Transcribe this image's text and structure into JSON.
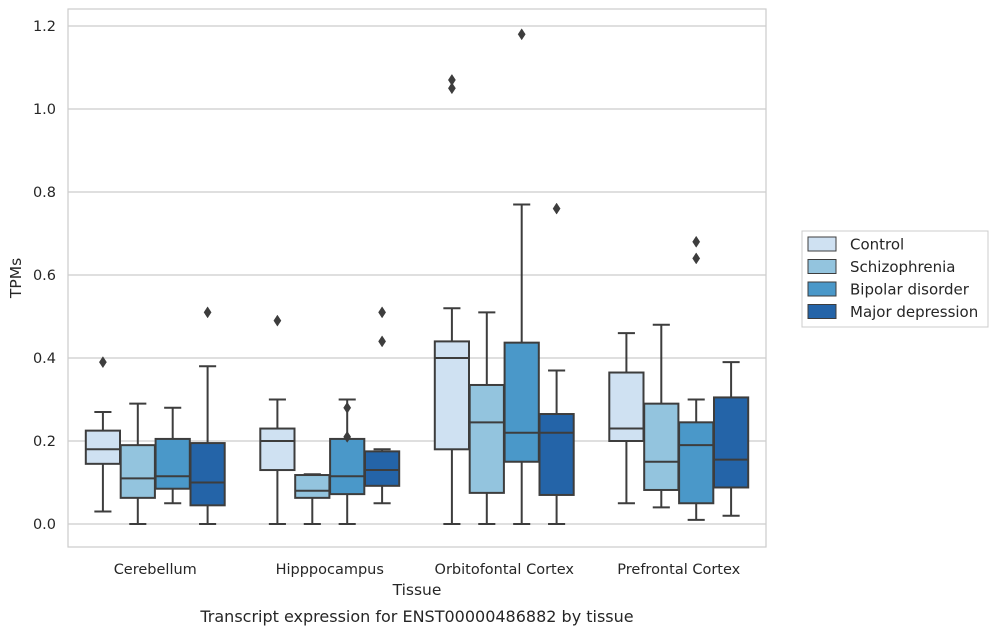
{
  "caption": "Transcript expression for ENST00000486882 by tissue",
  "chart_data": {
    "type": "box",
    "xlabel": "Tissue",
    "ylabel": "TPMs",
    "ylim": [
      -0.055,
      1.24
    ],
    "yticks": [
      "0.0",
      "0.2",
      "0.4",
      "0.6",
      "0.8",
      "1.0",
      "1.2"
    ],
    "grid": "horizontal",
    "legend_position": "right",
    "categories": [
      "Cerebellum",
      "Hipppocampus",
      "Orbitofontal Cortex",
      "Prefrontal Cortex"
    ],
    "series": [
      {
        "name": "Control",
        "color": "#cfe1f2",
        "boxes": [
          {
            "whislo": 0.03,
            "q1": 0.145,
            "med": 0.18,
            "q3": 0.225,
            "whishi": 0.27,
            "fliers": [
              0.39
            ]
          },
          {
            "whislo": 0.0,
            "q1": 0.13,
            "med": 0.2,
            "q3": 0.23,
            "whishi": 0.3,
            "fliers": [
              0.49
            ]
          },
          {
            "whislo": 0.0,
            "q1": 0.18,
            "med": 0.4,
            "q3": 0.44,
            "whishi": 0.52,
            "fliers": [
              1.05,
              1.07
            ]
          },
          {
            "whislo": 0.05,
            "q1": 0.2,
            "med": 0.23,
            "q3": 0.365,
            "whishi": 0.46,
            "fliers": []
          }
        ]
      },
      {
        "name": "Schizophrenia",
        "color": "#93c4de",
        "boxes": [
          {
            "whislo": 0.0,
            "q1": 0.063,
            "med": 0.11,
            "q3": 0.19,
            "whishi": 0.29,
            "fliers": []
          },
          {
            "whislo": 0.0,
            "q1": 0.063,
            "med": 0.08,
            "q3": 0.118,
            "whishi": 0.12,
            "fliers": []
          },
          {
            "whislo": 0.0,
            "q1": 0.075,
            "med": 0.245,
            "q3": 0.335,
            "whishi": 0.51,
            "fliers": []
          },
          {
            "whislo": 0.04,
            "q1": 0.082,
            "med": 0.15,
            "q3": 0.29,
            "whishi": 0.48,
            "fliers": []
          }
        ]
      },
      {
        "name": "Bipolar disorder",
        "color": "#4a98c9",
        "boxes": [
          {
            "whislo": 0.05,
            "q1": 0.085,
            "med": 0.115,
            "q3": 0.205,
            "whishi": 0.28,
            "fliers": []
          },
          {
            "whislo": 0.0,
            "q1": 0.072,
            "med": 0.115,
            "q3": 0.205,
            "whishi": 0.3,
            "fliers": [
              0.21,
              0.28
            ]
          },
          {
            "whislo": 0.0,
            "q1": 0.15,
            "med": 0.22,
            "q3": 0.437,
            "whishi": 0.77,
            "fliers": [
              1.18
            ]
          },
          {
            "whislo": 0.01,
            "q1": 0.05,
            "med": 0.19,
            "q3": 0.245,
            "whishi": 0.3,
            "fliers": [
              0.64,
              0.68
            ]
          }
        ]
      },
      {
        "name": "Major depression",
        "color": "#2464a8",
        "boxes": [
          {
            "whislo": 0.0,
            "q1": 0.045,
            "med": 0.1,
            "q3": 0.195,
            "whishi": 0.38,
            "fliers": [
              0.51
            ]
          },
          {
            "whislo": 0.05,
            "q1": 0.092,
            "med": 0.13,
            "q3": 0.175,
            "whishi": 0.18,
            "fliers": [
              0.44,
              0.51
            ]
          },
          {
            "whislo": 0.0,
            "q1": 0.07,
            "med": 0.22,
            "q3": 0.265,
            "whishi": 0.37,
            "fliers": [
              0.76
            ]
          },
          {
            "whislo": 0.02,
            "q1": 0.088,
            "med": 0.155,
            "q3": 0.305,
            "whishi": 0.39,
            "fliers": []
          }
        ]
      }
    ]
  }
}
